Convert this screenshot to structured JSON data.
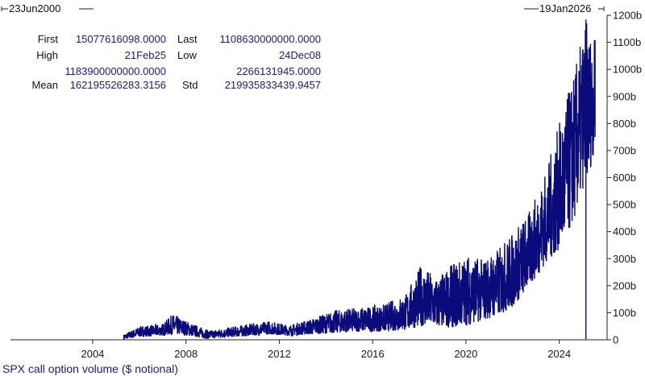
{
  "range": {
    "start": "23Jun2000",
    "end": "19Jan2026"
  },
  "stats": {
    "first_label": "First",
    "first_value": "15077616098.0000",
    "last_label": "Last",
    "last_value": "1108630000000.0000",
    "high_label": "High",
    "high_date": "21Feb25",
    "high_value": "1183900000000.0000",
    "low_label": "Low",
    "low_date": "24Dec08",
    "low_value": "2266131945.0000",
    "mean_label": "Mean",
    "mean_value": "162195526283.3156",
    "std_label": "Std",
    "std_value": "219935833439.9457"
  },
  "colors": {
    "series": "#0a0a7a",
    "axis": "#222222"
  },
  "chart_data": {
    "type": "line",
    "xlabel": "SPX call option volume ($ notional)",
    "x_ticks": [
      "2004",
      "2008",
      "2012",
      "2016",
      "2020",
      "2024"
    ],
    "y_ticks": [
      "0",
      "100b",
      "200b",
      "300b",
      "400b",
      "500b",
      "600b",
      "700b",
      "800b",
      "900b",
      "1000b",
      "1100b",
      "1200b"
    ],
    "xlim": [
      "2000-06-23",
      "2026-01-19"
    ],
    "ylim": [
      0,
      1200000000000
    ],
    "y_axis_side": "right",
    "grid": false,
    "series": [
      {
        "name": "SPX call option volume ($ notional)",
        "approx_envelope": [
          {
            "x": "2005-05-01",
            "low": 2000000000,
            "high": 20000000000
          },
          {
            "x": "2006-01-01",
            "low": 10000000000,
            "high": 50000000000
          },
          {
            "x": "2007-01-01",
            "low": 15000000000,
            "high": 60000000000
          },
          {
            "x": "2007-06-01",
            "low": 20000000000,
            "high": 95000000000
          },
          {
            "x": "2008-06-01",
            "low": 12000000000,
            "high": 55000000000
          },
          {
            "x": "2008-12-24",
            "low": 2266131945,
            "high": 35000000000
          },
          {
            "x": "2009-06-01",
            "low": 8000000000,
            "high": 40000000000
          },
          {
            "x": "2010-06-01",
            "low": 12000000000,
            "high": 55000000000
          },
          {
            "x": "2011-08-01",
            "low": 20000000000,
            "high": 70000000000
          },
          {
            "x": "2012-06-01",
            "low": 15000000000,
            "high": 55000000000
          },
          {
            "x": "2013-06-01",
            "low": 20000000000,
            "high": 80000000000
          },
          {
            "x": "2014-06-01",
            "low": 25000000000,
            "high": 110000000000
          },
          {
            "x": "2015-06-01",
            "low": 30000000000,
            "high": 120000000000
          },
          {
            "x": "2016-06-01",
            "low": 30000000000,
            "high": 130000000000
          },
          {
            "x": "2017-06-01",
            "low": 35000000000,
            "high": 170000000000
          },
          {
            "x": "2018-02-01",
            "low": 50000000000,
            "high": 280000000000
          },
          {
            "x": "2018-10-01",
            "low": 45000000000,
            "high": 230000000000
          },
          {
            "x": "2019-06-01",
            "low": 45000000000,
            "high": 280000000000
          },
          {
            "x": "2020-03-01",
            "low": 55000000000,
            "high": 320000000000
          },
          {
            "x": "2020-09-01",
            "low": 70000000000,
            "high": 300000000000
          },
          {
            "x": "2021-06-01",
            "low": 90000000000,
            "high": 340000000000
          },
          {
            "x": "2022-01-01",
            "low": 120000000000,
            "high": 400000000000
          },
          {
            "x": "2022-10-01",
            "low": 200000000000,
            "high": 480000000000
          },
          {
            "x": "2023-06-01",
            "low": 280000000000,
            "high": 620000000000
          },
          {
            "x": "2024-03-01",
            "low": 350000000000,
            "high": 850000000000
          },
          {
            "x": "2024-09-01",
            "low": 450000000000,
            "high": 1000000000000
          },
          {
            "x": "2025-02-21",
            "low": 600000000000,
            "high": 1183900000000
          },
          {
            "x": "2025-06-01",
            "low": 650000000000,
            "high": 1120000000000
          },
          {
            "x": "2025-07-15",
            "low": 750000000000,
            "high": 1108630000000
          }
        ]
      }
    ]
  }
}
